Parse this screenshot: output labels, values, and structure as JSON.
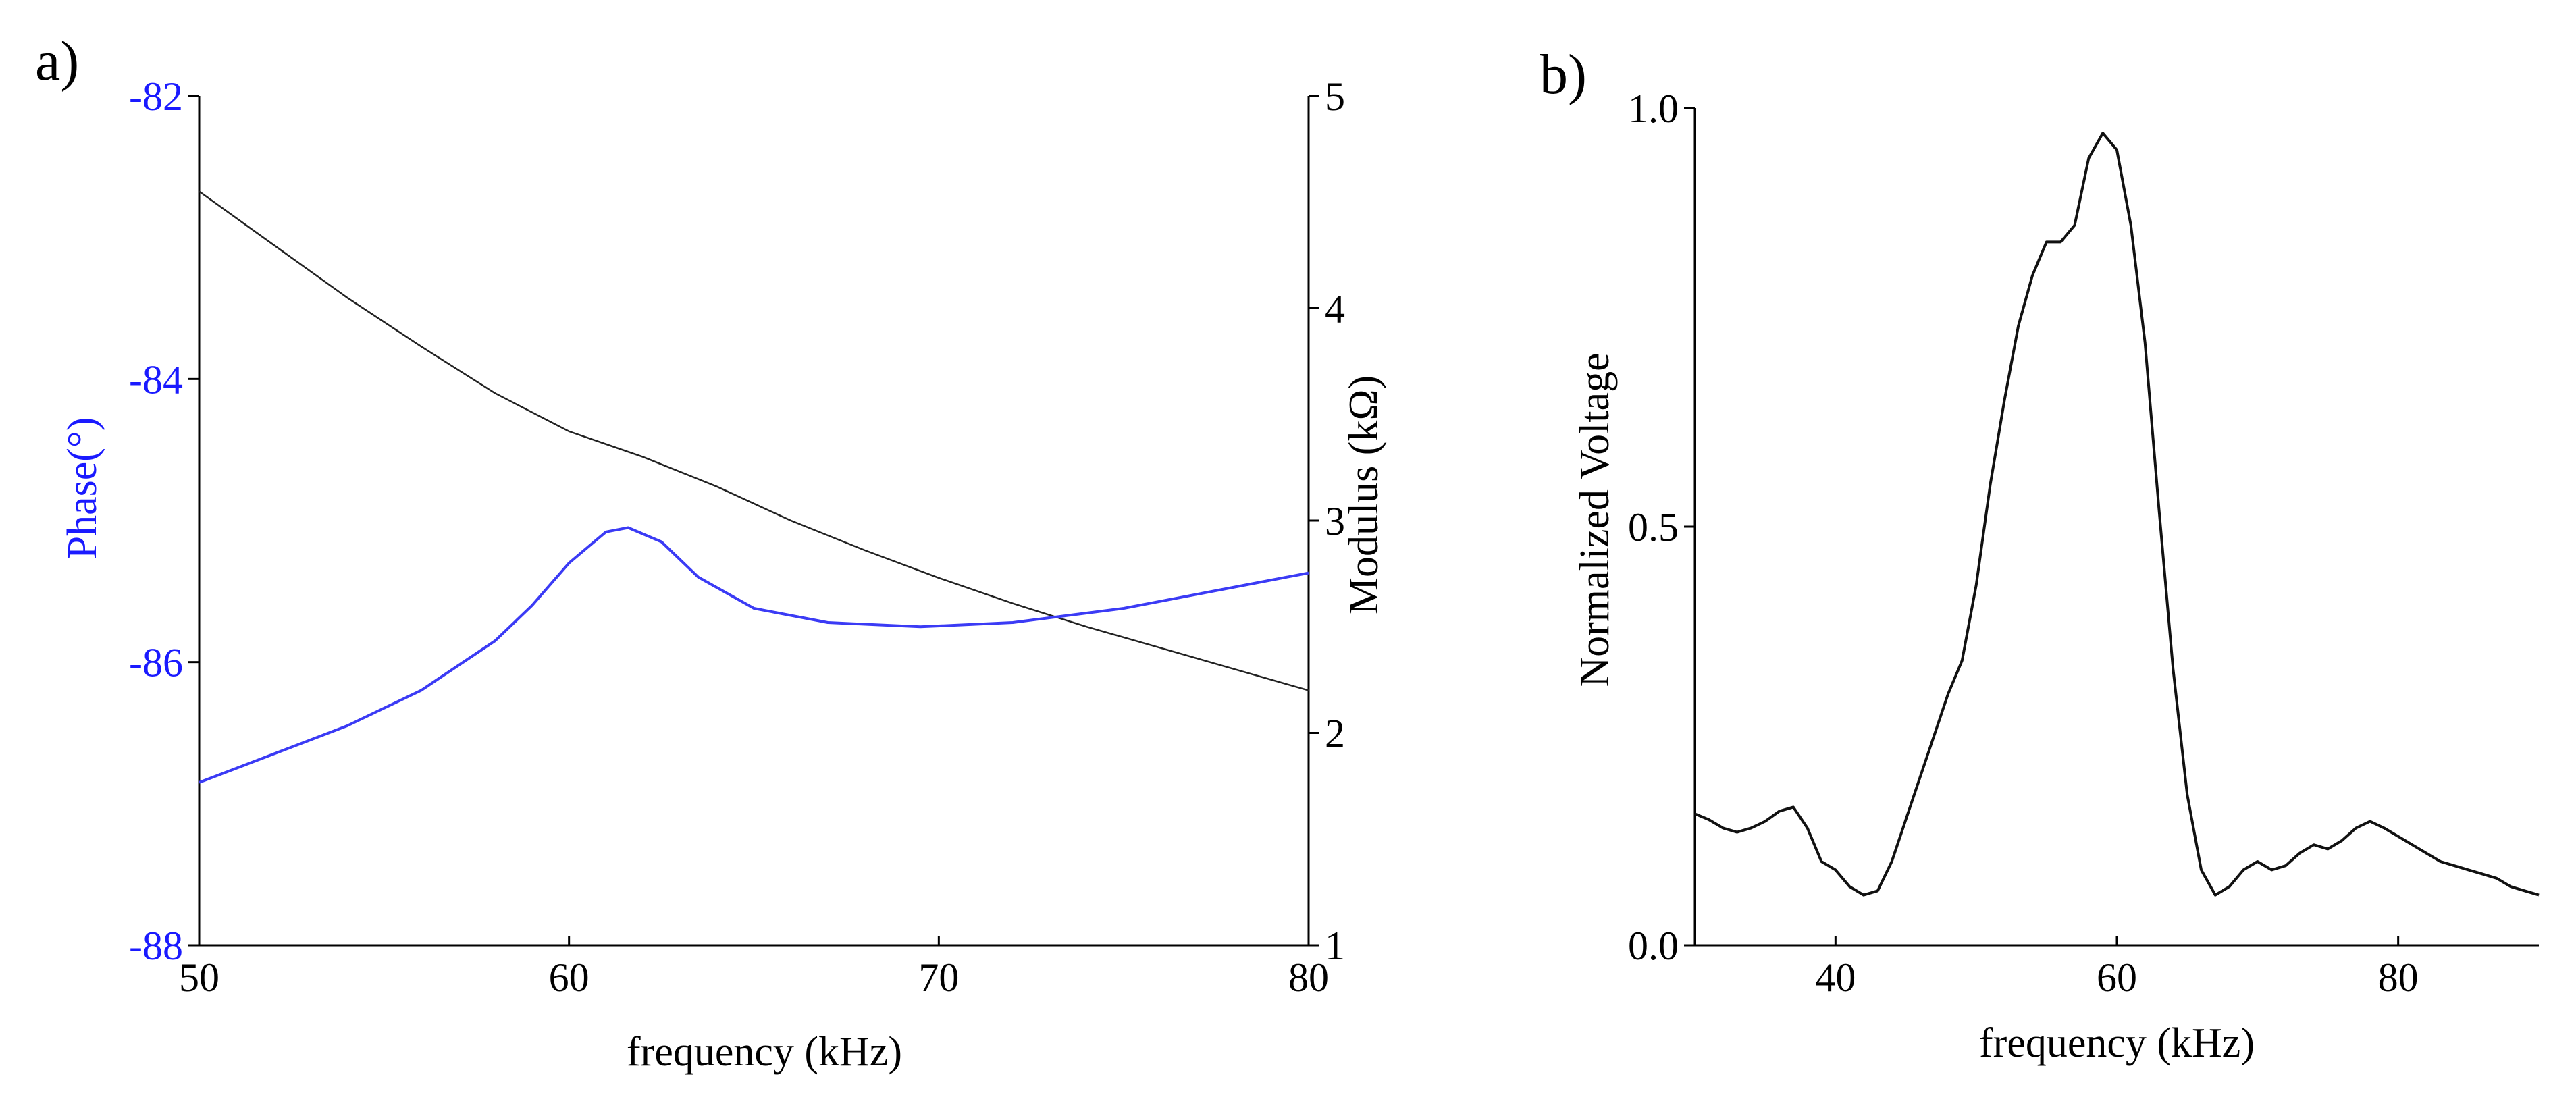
{
  "chart_data": [
    {
      "panel_label": "a)",
      "type": "line",
      "xlabel": "frequency (kHz)",
      "xlim": [
        50,
        80
      ],
      "xticks": [
        50,
        60,
        70,
        80
      ],
      "ylabel_left": "Phase(°)",
      "ylim_left": [
        -88,
        -82
      ],
      "yticks_left": [
        -88,
        -86,
        -84,
        -82
      ],
      "ylabel_right": "Modulus (kΩ)",
      "ylim_right": [
        1,
        5
      ],
      "yticks_right": [
        1,
        2,
        3,
        4,
        5
      ],
      "colors": {
        "phase": "#3b3bf5",
        "modulus": "#222222",
        "left_axis": "#1a1aff"
      },
      "series": [
        {
          "name": "Phase",
          "axis": "left",
          "x": [
            50,
            52,
            54,
            56,
            58,
            59,
            60,
            61,
            61.6,
            62.5,
            63.5,
            65,
            67,
            69.5,
            72,
            75,
            78,
            80
          ],
          "values": [
            -86.85,
            -86.65,
            -86.45,
            -86.2,
            -85.85,
            -85.6,
            -85.3,
            -85.08,
            -85.05,
            -85.15,
            -85.4,
            -85.62,
            -85.72,
            -85.75,
            -85.72,
            -85.62,
            -85.47,
            -85.37
          ]
        },
        {
          "name": "Modulus",
          "axis": "right",
          "x": [
            50,
            52,
            54,
            56,
            58,
            60,
            62,
            64,
            66,
            68,
            70,
            72,
            74,
            76,
            78,
            80
          ],
          "values": [
            4.55,
            4.3,
            4.05,
            3.82,
            3.6,
            3.42,
            3.3,
            3.16,
            3.0,
            2.86,
            2.73,
            2.61,
            2.5,
            2.4,
            2.3,
            2.2
          ]
        }
      ]
    },
    {
      "panel_label": "b)",
      "type": "line",
      "xlabel": "frequency (kHz)",
      "ylabel": "Normalized Voltage",
      "xlim": [
        30,
        90
      ],
      "xticks": [
        40,
        60,
        80
      ],
      "ylim": [
        0,
        1
      ],
      "yticks": [
        0.0,
        0.5,
        1.0
      ],
      "ytick_labels": [
        "0.0",
        "0.5",
        "1.0"
      ],
      "colors": {
        "line": "#111111"
      },
      "series": [
        {
          "name": "Normalized Voltage",
          "x": [
            30,
            31,
            32,
            33,
            34,
            35,
            36,
            37,
            38,
            39,
            40,
            41,
            42,
            43,
            44,
            45,
            46,
            47,
            48,
            49,
            50,
            51,
            52,
            53,
            54,
            55,
            56,
            57,
            58,
            59,
            60,
            61,
            62,
            63,
            64,
            65,
            66,
            67,
            68,
            69,
            70,
            71,
            72,
            73,
            74,
            75,
            76,
            77,
            78,
            79,
            80,
            81,
            82,
            83,
            84,
            85,
            86,
            87,
            88,
            89,
            90
          ],
          "values": [
            0.157,
            0.15,
            0.14,
            0.135,
            0.14,
            0.148,
            0.16,
            0.165,
            0.14,
            0.1,
            0.09,
            0.07,
            0.06,
            0.065,
            0.1,
            0.15,
            0.2,
            0.25,
            0.3,
            0.34,
            0.43,
            0.55,
            0.65,
            0.74,
            0.8,
            0.84,
            0.84,
            0.86,
            0.94,
            0.97,
            0.95,
            0.86,
            0.72,
            0.52,
            0.33,
            0.18,
            0.09,
            0.06,
            0.07,
            0.09,
            0.1,
            0.09,
            0.095,
            0.11,
            0.12,
            0.115,
            0.125,
            0.14,
            0.148,
            0.14,
            0.13,
            0.12,
            0.11,
            0.1,
            0.095,
            0.09,
            0.085,
            0.08,
            0.07,
            0.065,
            0.06
          ]
        }
      ]
    }
  ]
}
